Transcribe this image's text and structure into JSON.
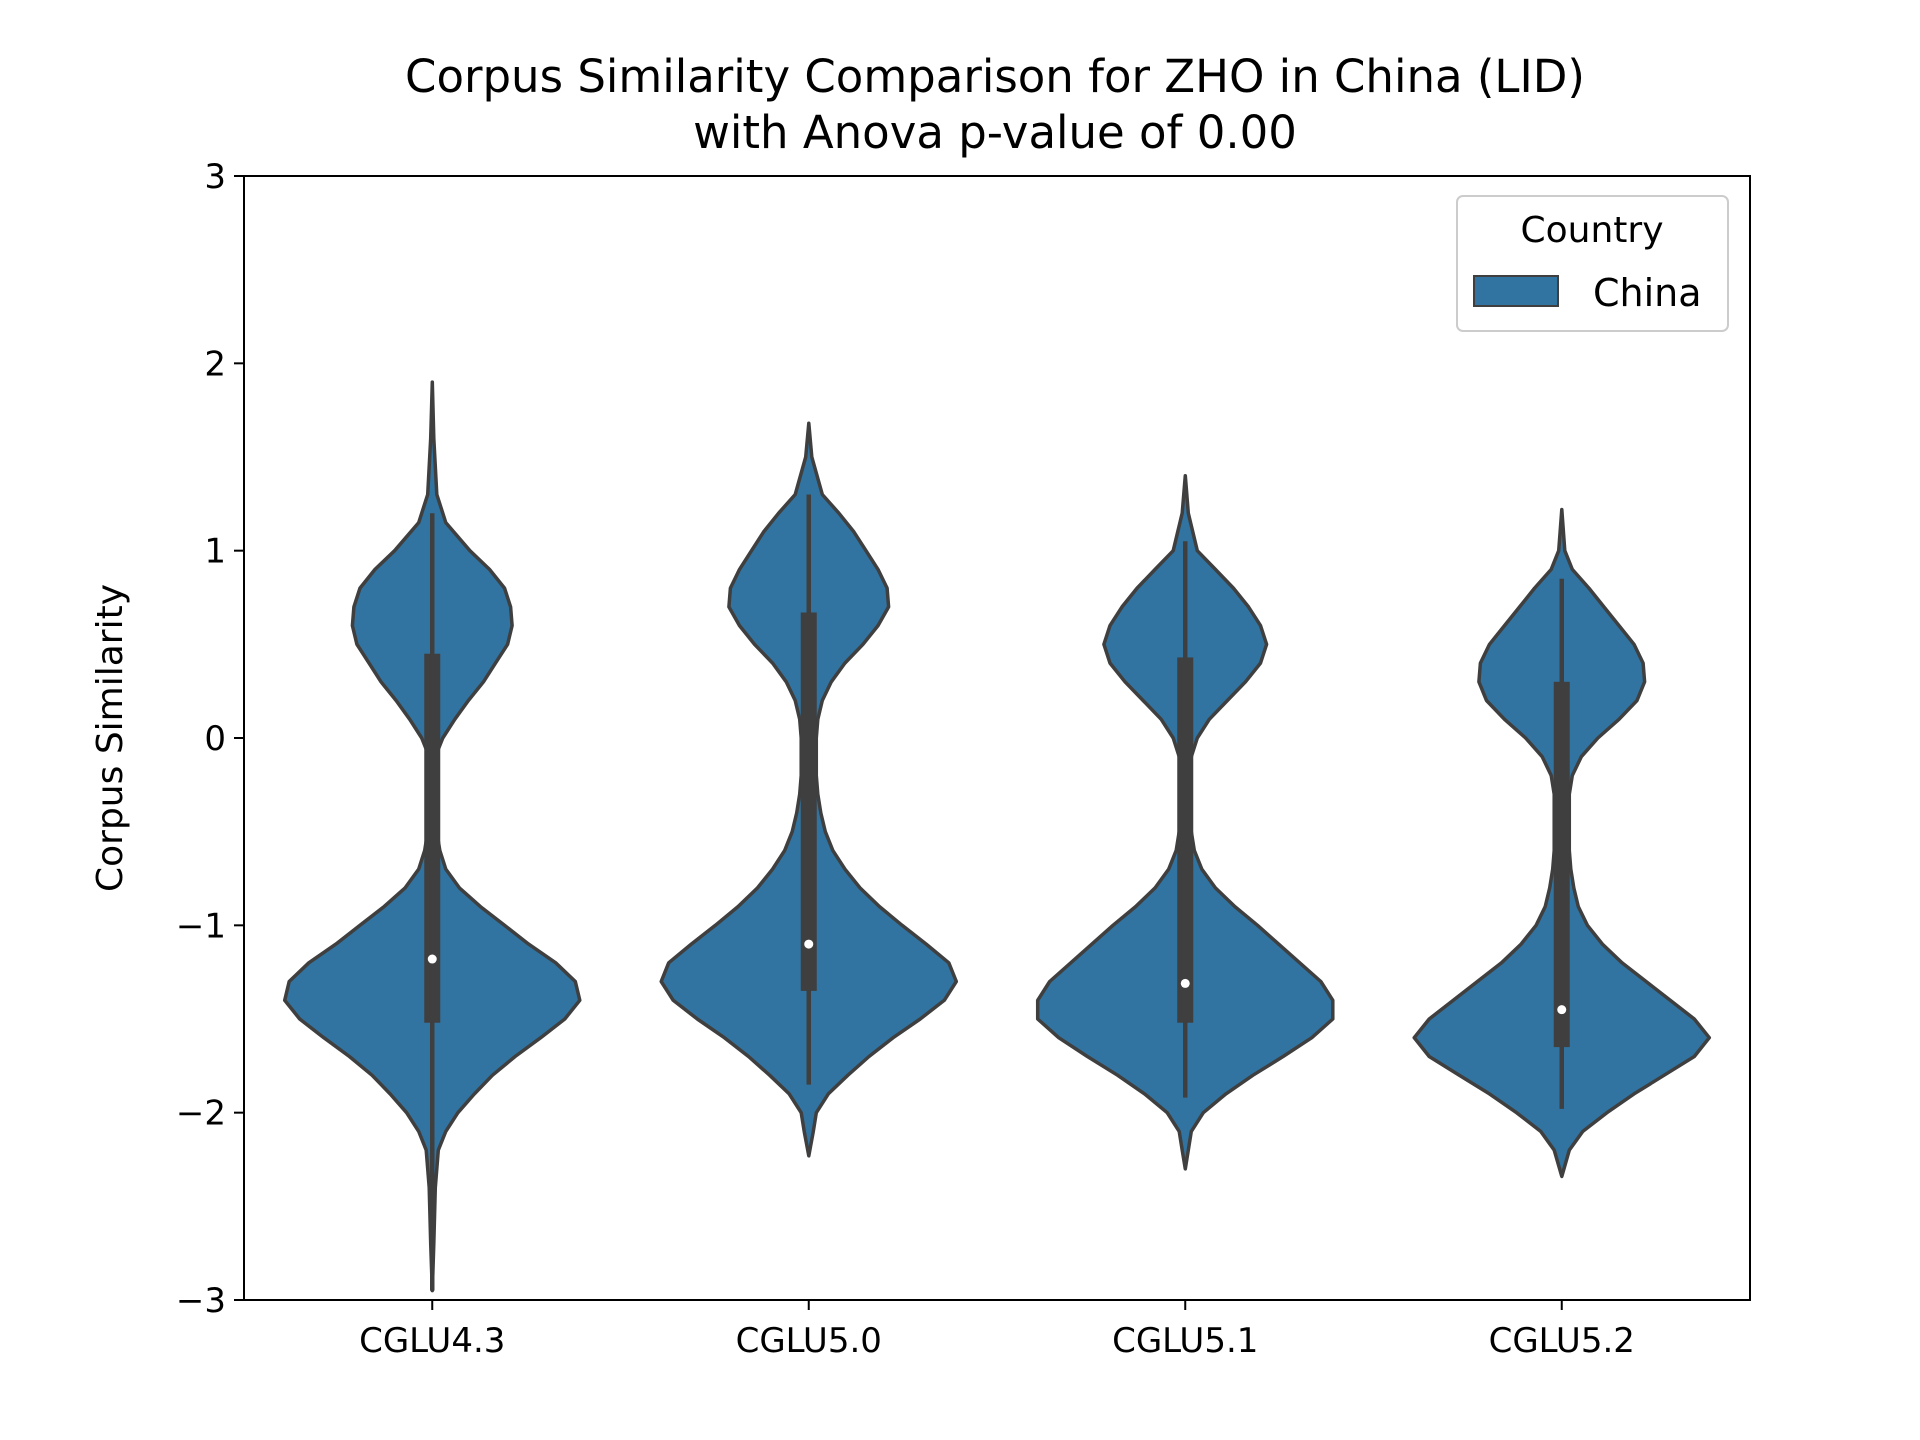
{
  "chart_data": {
    "type": "violin",
    "title_lines": [
      "Corpus Similarity Comparison for ZHO in China (LID)",
      "with Anova p-value of 0.00"
    ],
    "xlabel": "",
    "ylabel": "Corpus Similarity",
    "ylim": [
      -3,
      3
    ],
    "yticks": [
      3,
      2,
      1,
      0,
      -1,
      -2,
      -3
    ],
    "ytick_labels": [
      "3",
      "2",
      "1",
      "0",
      "−1",
      "−2",
      "−3"
    ],
    "categories": [
      "CGLU4.3",
      "CGLU5.0",
      "CGLU5.1",
      "CGLU5.2"
    ],
    "legend": {
      "title": "Country",
      "entries": [
        "China"
      ],
      "placement": "top-right"
    },
    "series": [
      {
        "name": "China",
        "color": "#3274a1",
        "violins": [
          {
            "category": "CGLU4.3",
            "median": -1.18,
            "q1": -1.52,
            "q3": 0.45,
            "whisker_low": -2.95,
            "whisker_high": 1.2,
            "profile": [
              [
                1.9,
                0.0
              ],
              [
                1.6,
                0.01
              ],
              [
                1.3,
                0.03
              ],
              [
                1.15,
                0.09
              ],
              [
                1.0,
                0.25
              ],
              [
                0.9,
                0.38
              ],
              [
                0.8,
                0.48
              ],
              [
                0.7,
                0.52
              ],
              [
                0.6,
                0.53
              ],
              [
                0.5,
                0.5
              ],
              [
                0.4,
                0.42
              ],
              [
                0.3,
                0.34
              ],
              [
                0.2,
                0.24
              ],
              [
                0.1,
                0.15
              ],
              [
                0.0,
                0.07
              ],
              [
                -0.1,
                0.02
              ],
              [
                -0.2,
                0.02
              ],
              [
                -0.3,
                0.02
              ],
              [
                -0.4,
                0.02
              ],
              [
                -0.5,
                0.03
              ],
              [
                -0.6,
                0.05
              ],
              [
                -0.7,
                0.09
              ],
              [
                -0.8,
                0.18
              ],
              [
                -0.9,
                0.32
              ],
              [
                -1.0,
                0.48
              ],
              [
                -1.1,
                0.64
              ],
              [
                -1.2,
                0.82
              ],
              [
                -1.3,
                0.95
              ],
              [
                -1.4,
                0.98
              ],
              [
                -1.5,
                0.88
              ],
              [
                -1.6,
                0.72
              ],
              [
                -1.7,
                0.55
              ],
              [
                -1.8,
                0.4
              ],
              [
                -1.9,
                0.28
              ],
              [
                -2.0,
                0.17
              ],
              [
                -2.1,
                0.09
              ],
              [
                -2.2,
                0.04
              ],
              [
                -2.4,
                0.02
              ],
              [
                -2.7,
                0.01
              ],
              [
                -2.95,
                0.0
              ]
            ]
          },
          {
            "category": "CGLU5.0",
            "median": -1.1,
            "q1": -1.35,
            "q3": 0.67,
            "whisker_low": -1.85,
            "whisker_high": 1.3,
            "profile": [
              [
                1.68,
                0.0
              ],
              [
                1.5,
                0.02
              ],
              [
                1.3,
                0.09
              ],
              [
                1.2,
                0.2
              ],
              [
                1.1,
                0.3
              ],
              [
                1.0,
                0.38
              ],
              [
                0.9,
                0.46
              ],
              [
                0.8,
                0.52
              ],
              [
                0.7,
                0.53
              ],
              [
                0.6,
                0.46
              ],
              [
                0.5,
                0.36
              ],
              [
                0.4,
                0.24
              ],
              [
                0.3,
                0.15
              ],
              [
                0.2,
                0.09
              ],
              [
                0.1,
                0.06
              ],
              [
                0.0,
                0.05
              ],
              [
                -0.1,
                0.05
              ],
              [
                -0.2,
                0.05
              ],
              [
                -0.3,
                0.06
              ],
              [
                -0.4,
                0.08
              ],
              [
                -0.5,
                0.11
              ],
              [
                -0.6,
                0.16
              ],
              [
                -0.7,
                0.24
              ],
              [
                -0.8,
                0.34
              ],
              [
                -0.9,
                0.47
              ],
              [
                -1.0,
                0.62
              ],
              [
                -1.1,
                0.78
              ],
              [
                -1.2,
                0.93
              ],
              [
                -1.3,
                0.98
              ],
              [
                -1.4,
                0.9
              ],
              [
                -1.5,
                0.74
              ],
              [
                -1.6,
                0.56
              ],
              [
                -1.7,
                0.4
              ],
              [
                -1.8,
                0.26
              ],
              [
                -1.9,
                0.13
              ],
              [
                -2.0,
                0.05
              ],
              [
                -2.1,
                0.03
              ],
              [
                -2.23,
                0.0
              ]
            ]
          },
          {
            "category": "CGLU5.1",
            "median": -1.31,
            "q1": -1.52,
            "q3": 0.43,
            "whisker_low": -1.92,
            "whisker_high": 1.05,
            "profile": [
              [
                1.4,
                0.0
              ],
              [
                1.2,
                0.02
              ],
              [
                1.0,
                0.08
              ],
              [
                0.9,
                0.2
              ],
              [
                0.8,
                0.32
              ],
              [
                0.7,
                0.42
              ],
              [
                0.6,
                0.5
              ],
              [
                0.5,
                0.54
              ],
              [
                0.4,
                0.5
              ],
              [
                0.3,
                0.4
              ],
              [
                0.2,
                0.28
              ],
              [
                0.1,
                0.16
              ],
              [
                0.0,
                0.08
              ],
              [
                -0.1,
                0.04
              ],
              [
                -0.2,
                0.03
              ],
              [
                -0.3,
                0.03
              ],
              [
                -0.4,
                0.03
              ],
              [
                -0.5,
                0.04
              ],
              [
                -0.6,
                0.06
              ],
              [
                -0.7,
                0.11
              ],
              [
                -0.8,
                0.2
              ],
              [
                -0.9,
                0.33
              ],
              [
                -1.0,
                0.48
              ],
              [
                -1.1,
                0.62
              ],
              [
                -1.2,
                0.76
              ],
              [
                -1.3,
                0.9
              ],
              [
                -1.4,
                0.98
              ],
              [
                -1.5,
                0.98
              ],
              [
                -1.6,
                0.84
              ],
              [
                -1.7,
                0.65
              ],
              [
                -1.8,
                0.45
              ],
              [
                -1.9,
                0.27
              ],
              [
                -2.0,
                0.12
              ],
              [
                -2.1,
                0.04
              ],
              [
                -2.2,
                0.02
              ],
              [
                -2.3,
                0.0
              ]
            ]
          },
          {
            "category": "CGLU5.2",
            "median": -1.45,
            "q1": -1.65,
            "q3": 0.3,
            "whisker_low": -1.98,
            "whisker_high": 0.85,
            "profile": [
              [
                1.22,
                0.0
              ],
              [
                1.0,
                0.02
              ],
              [
                0.9,
                0.07
              ],
              [
                0.8,
                0.18
              ],
              [
                0.7,
                0.28
              ],
              [
                0.6,
                0.38
              ],
              [
                0.5,
                0.48
              ],
              [
                0.4,
                0.54
              ],
              [
                0.3,
                0.55
              ],
              [
                0.2,
                0.5
              ],
              [
                0.1,
                0.38
              ],
              [
                0.0,
                0.24
              ],
              [
                -0.1,
                0.13
              ],
              [
                -0.2,
                0.07
              ],
              [
                -0.3,
                0.05
              ],
              [
                -0.4,
                0.05
              ],
              [
                -0.5,
                0.05
              ],
              [
                -0.6,
                0.05
              ],
              [
                -0.7,
                0.06
              ],
              [
                -0.8,
                0.08
              ],
              [
                -0.9,
                0.11
              ],
              [
                -1.0,
                0.17
              ],
              [
                -1.1,
                0.27
              ],
              [
                -1.2,
                0.4
              ],
              [
                -1.3,
                0.56
              ],
              [
                -1.4,
                0.72
              ],
              [
                -1.5,
                0.88
              ],
              [
                -1.6,
                0.98
              ],
              [
                -1.7,
                0.88
              ],
              [
                -1.8,
                0.68
              ],
              [
                -1.9,
                0.48
              ],
              [
                -2.0,
                0.3
              ],
              [
                -2.1,
                0.14
              ],
              [
                -2.2,
                0.05
              ],
              [
                -2.34,
                0.0
              ]
            ]
          }
        ]
      }
    ]
  }
}
